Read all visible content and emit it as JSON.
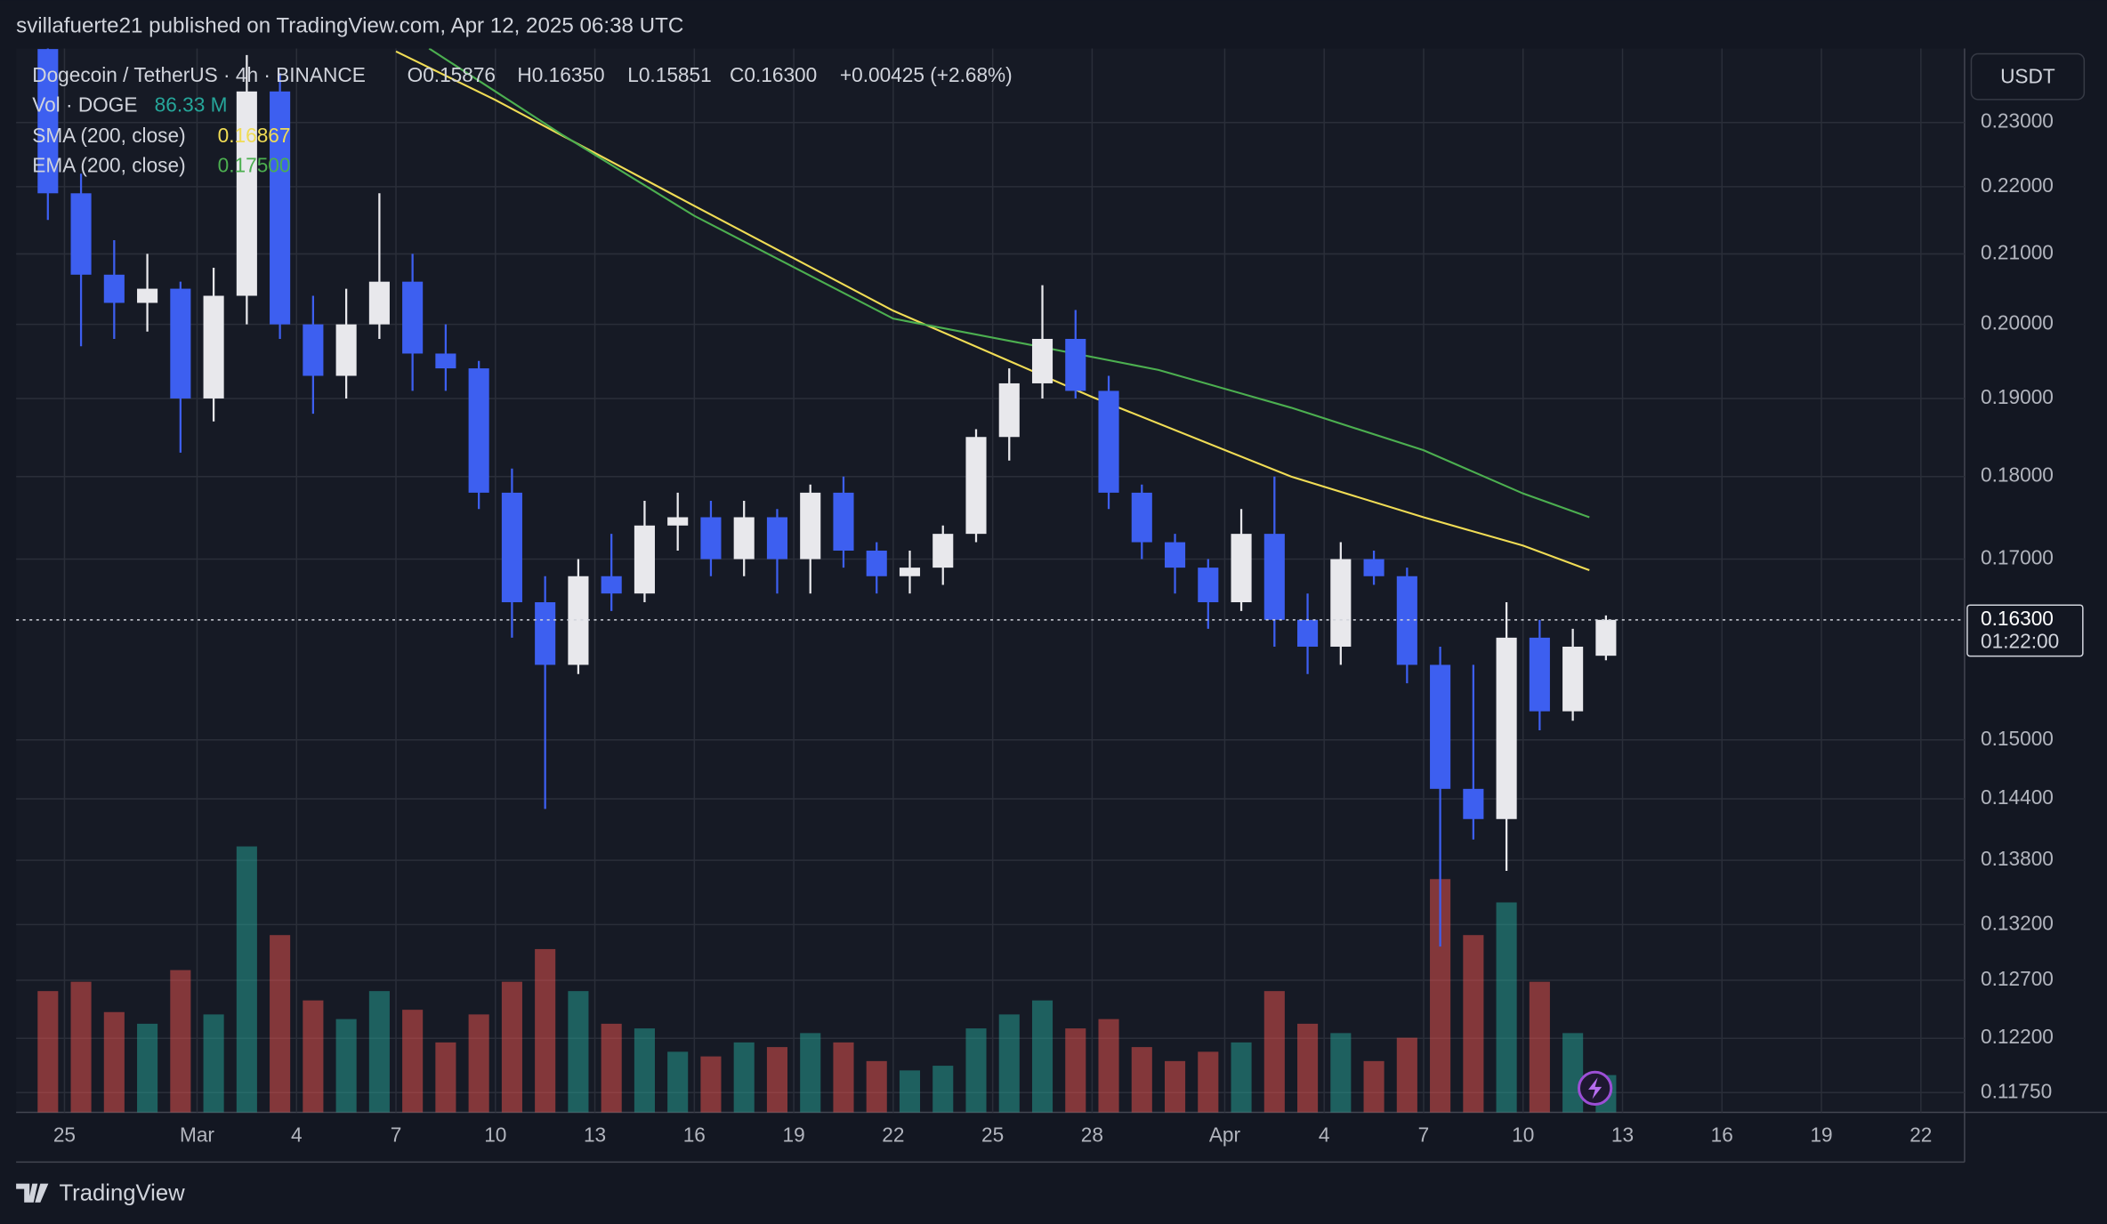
{
  "header": {
    "byline": "svillafuerte21 published on TradingView.com, Apr 12, 2025 06:38 UTC",
    "currency_button": "USDT",
    "brand": "TradingView"
  },
  "chart_data": {
    "type": "candlestick",
    "symbol": "Dogecoin / TetherUS · 4h · BINANCE",
    "ohlc_labels": [
      "O0.15876",
      "H0.16350",
      "L0.15851",
      "C0.16300"
    ],
    "change": "+0.00425 (+2.68%)",
    "up_color": "#e8e8ec",
    "down_color": "#3d5ff0",
    "x": [
      "Feb 24",
      "Feb 25",
      "Feb 26",
      "Feb 27",
      "Feb 28",
      "Mar 1",
      "Mar 2",
      "Mar 3",
      "Mar 4",
      "Mar 5",
      "Mar 6",
      "Mar 7",
      "Mar 8",
      "Mar 9",
      "Mar 10",
      "Mar 11",
      "Mar 12",
      "Mar 13",
      "Mar 14",
      "Mar 15",
      "Mar 16",
      "Mar 17",
      "Mar 18",
      "Mar 19",
      "Mar 20",
      "Mar 21",
      "Mar 22",
      "Mar 23",
      "Mar 24",
      "Mar 25",
      "Mar 26",
      "Mar 27",
      "Mar 28",
      "Mar 29",
      "Mar 30",
      "Mar 31",
      "Apr 1",
      "Apr 2",
      "Apr 3",
      "Apr 4",
      "Apr 5",
      "Apr 6",
      "Apr 7",
      "Apr 8",
      "Apr 9",
      "Apr 10",
      "Apr 11",
      "Apr 12"
    ],
    "open": [
      0.242,
      0.219,
      0.207,
      0.203,
      0.205,
      0.19,
      0.204,
      0.235,
      0.2,
      0.193,
      0.2,
      0.206,
      0.196,
      0.194,
      0.178,
      0.165,
      0.158,
      0.168,
      0.166,
      0.174,
      0.175,
      0.17,
      0.175,
      0.17,
      0.178,
      0.171,
      0.168,
      0.169,
      0.173,
      0.185,
      0.192,
      0.198,
      0.191,
      0.178,
      0.172,
      0.169,
      0.165,
      0.173,
      0.163,
      0.16,
      0.17,
      0.168,
      0.158,
      0.145,
      0.142,
      0.161,
      0.153,
      0.159
    ],
    "high": [
      0.244,
      0.222,
      0.212,
      0.21,
      0.206,
      0.208,
      0.241,
      0.238,
      0.204,
      0.205,
      0.219,
      0.21,
      0.2,
      0.195,
      0.181,
      0.168,
      0.17,
      0.173,
      0.177,
      0.178,
      0.177,
      0.177,
      0.176,
      0.179,
      0.18,
      0.172,
      0.171,
      0.174,
      0.186,
      0.194,
      0.2055,
      0.202,
      0.193,
      0.179,
      0.173,
      0.17,
      0.176,
      0.18,
      0.166,
      0.172,
      0.171,
      0.169,
      0.16,
      0.158,
      0.165,
      0.163,
      0.162,
      0.1635
    ],
    "low": [
      0.215,
      0.197,
      0.198,
      0.199,
      0.183,
      0.187,
      0.2,
      0.198,
      0.188,
      0.19,
      0.198,
      0.191,
      0.191,
      0.176,
      0.161,
      0.143,
      0.157,
      0.164,
      0.165,
      0.171,
      0.168,
      0.168,
      0.166,
      0.166,
      0.169,
      0.166,
      0.166,
      0.167,
      0.172,
      0.182,
      0.19,
      0.19,
      0.176,
      0.17,
      0.166,
      0.162,
      0.164,
      0.16,
      0.157,
      0.158,
      0.167,
      0.156,
      0.13,
      0.14,
      0.137,
      0.151,
      0.152,
      0.1585
    ],
    "close": [
      0.219,
      0.207,
      0.203,
      0.205,
      0.19,
      0.204,
      0.235,
      0.2,
      0.193,
      0.2,
      0.206,
      0.196,
      0.194,
      0.178,
      0.165,
      0.158,
      0.168,
      0.166,
      0.174,
      0.175,
      0.17,
      0.175,
      0.17,
      0.178,
      0.171,
      0.168,
      0.169,
      0.173,
      0.185,
      0.192,
      0.198,
      0.191,
      0.178,
      0.172,
      0.169,
      0.165,
      0.173,
      0.163,
      0.16,
      0.17,
      0.168,
      0.158,
      0.145,
      0.142,
      0.161,
      0.153,
      0.16,
      0.163
    ],
    "volume": {
      "name": "Vol · DOGE",
      "value_label": "86.33 M",
      "up_color": "#26a69a",
      "down_color": "#ef5350",
      "values": [
        520,
        560,
        430,
        380,
        610,
        420,
        1140,
        760,
        480,
        400,
        520,
        440,
        300,
        420,
        560,
        700,
        520,
        380,
        360,
        260,
        240,
        300,
        280,
        340,
        300,
        220,
        180,
        200,
        360,
        420,
        480,
        360,
        400,
        280,
        220,
        260,
        300,
        520,
        380,
        340,
        220,
        320,
        1000,
        760,
        900,
        560,
        340,
        160
      ]
    },
    "lines": [
      {
        "name": "SMA (200, close)",
        "value_label": "0.16867",
        "color": "#f0dc55",
        "x": [
          "Mar 7",
          "Mar 10",
          "Mar 16",
          "Mar 22",
          "Mar 28",
          "Apr 3",
          "Apr 7",
          "Apr 10",
          "Apr 12"
        ],
        "values": [
          0.2416,
          0.2336,
          0.2171,
          0.2019,
          0.1902,
          0.18,
          0.175,
          0.1716,
          0.1687
        ]
      },
      {
        "name": "EMA (200, close)",
        "value_label": "0.17500",
        "color": "#4caf50",
        "x": [
          "Mar 8",
          "Mar 12",
          "Mar 16",
          "Mar 22",
          "Mar 26",
          "Mar 30",
          "Apr 3",
          "Apr 7",
          "Apr 10",
          "Apr 12"
        ],
        "values": [
          0.2421,
          0.2281,
          0.2156,
          0.2008,
          0.1973,
          0.1938,
          0.1888,
          0.1833,
          0.1779,
          0.175
        ]
      }
    ],
    "ylim": [
      0.1159,
      0.2421
    ],
    "log_scale": true,
    "grid": true,
    "yticks": [
      {
        "value": 0.23,
        "label": "0.23000"
      },
      {
        "value": 0.22,
        "label": "0.22000"
      },
      {
        "value": 0.21,
        "label": "0.21000"
      },
      {
        "value": 0.2,
        "label": "0.20000"
      },
      {
        "value": 0.19,
        "label": "0.19000"
      },
      {
        "value": 0.18,
        "label": "0.18000"
      },
      {
        "value": 0.17,
        "label": "0.17000"
      },
      {
        "value": 0.15,
        "label": "0.15000"
      },
      {
        "value": 0.144,
        "label": "0.14400"
      },
      {
        "value": 0.138,
        "label": "0.13800"
      },
      {
        "value": 0.132,
        "label": "0.13200"
      },
      {
        "value": 0.127,
        "label": "0.12700"
      },
      {
        "value": 0.122,
        "label": "0.12200"
      },
      {
        "value": 0.1175,
        "label": "0.11750"
      }
    ],
    "xlim": [
      "Feb 24",
      "Apr 23"
    ],
    "xticks": [
      {
        "value": "Feb 25",
        "label": "25"
      },
      {
        "value": "Mar 1",
        "label": "Mar"
      },
      {
        "value": "Mar 4",
        "label": "4"
      },
      {
        "value": "Mar 7",
        "label": "7"
      },
      {
        "value": "Mar 10",
        "label": "10"
      },
      {
        "value": "Mar 13",
        "label": "13"
      },
      {
        "value": "Mar 16",
        "label": "16"
      },
      {
        "value": "Mar 19",
        "label": "19"
      },
      {
        "value": "Mar 22",
        "label": "22"
      },
      {
        "value": "Mar 25",
        "label": "25"
      },
      {
        "value": "Mar 28",
        "label": "28"
      },
      {
        "value": "Apr 1",
        "label": "Apr"
      },
      {
        "value": "Apr 4",
        "label": "4"
      },
      {
        "value": "Apr 7",
        "label": "7"
      },
      {
        "value": "Apr 10",
        "label": "10"
      },
      {
        "value": "Apr 13",
        "label": "13"
      },
      {
        "value": "Apr 16",
        "label": "16"
      },
      {
        "value": "Apr 19",
        "label": "19"
      },
      {
        "value": "Apr 22",
        "label": "22"
      }
    ],
    "last_price": {
      "value": 0.163,
      "label": "0.16300",
      "countdown": "01:22:00"
    }
  }
}
